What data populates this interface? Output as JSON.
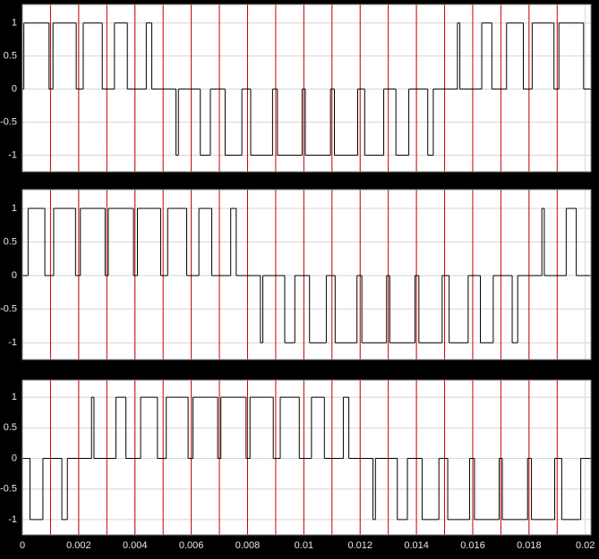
{
  "chart_data": [
    {
      "type": "step",
      "x": [
        0,
        5.2e-05,
        0.000948,
        0.001087,
        0.001913,
        0.002162,
        0.002838,
        0.003271,
        0.003729,
        0.004402,
        0.004598,
        0.005457,
        0.005543,
        0.006321,
        0.006679,
        0.007202,
        0.007798,
        0.008112,
        0.008888,
        0.009061,
        0.009939,
        0.010052,
        0.010948,
        0.011087,
        0.011913,
        0.012162,
        0.012838,
        0.013271,
        0.013729,
        0.014402,
        0.014598,
        0.015457,
        0.015543,
        0.016321,
        0.016679,
        0.017202,
        0.017798,
        0.018112,
        0.018888,
        0.019061,
        0.019939
      ],
      "values": [
        0,
        1,
        0,
        1,
        0,
        1,
        0,
        1,
        0,
        1,
        0,
        -1,
        0,
        -1,
        0,
        -1,
        0,
        -1,
        0,
        -1,
        0,
        -1,
        0,
        -1,
        0,
        -1,
        0,
        -1,
        0,
        -1,
        0,
        1,
        0,
        1,
        0,
        1,
        0,
        1,
        0,
        1,
        0
      ],
      "color": "#000000",
      "xlim": [
        0,
        0.0202
      ],
      "xticks": [
        0,
        0.002,
        0.004,
        0.006,
        0.008,
        0.01,
        0.012,
        0.014,
        0.016,
        0.018,
        0.02
      ],
      "ylim": [
        -1.25,
        1.28
      ],
      "yticks": [
        -1,
        -0.5,
        0,
        0.5,
        1
      ],
      "grid": true,
      "markers": [
        0.001,
        0.002,
        0.003,
        0.004,
        0.005,
        0.006,
        0.007,
        0.008,
        0.009,
        0.01,
        0.011,
        0.012,
        0.013,
        0.014,
        0.015,
        0.016,
        0.017,
        0.018,
        0.019
      ],
      "marker_color": "#cc0000"
    },
    {
      "type": "step",
      "x": [
        0,
        0.000202,
        0.000798,
        0.001112,
        0.001888,
        0.002061,
        0.002939,
        0.003052,
        0.003948,
        0.004087,
        0.004913,
        0.005162,
        0.005838,
        0.006271,
        0.006729,
        0.007402,
        0.007598,
        0.008457,
        0.008543,
        0.009321,
        0.009679,
        0.010202,
        0.010798,
        0.011112,
        0.011888,
        0.012061,
        0.012939,
        0.013052,
        0.013948,
        0.014087,
        0.014913,
        0.015162,
        0.015838,
        0.016271,
        0.016729,
        0.017402,
        0.017598,
        0.018457,
        0.018543,
        0.019321,
        0.019679
      ],
      "values": [
        0,
        1,
        0,
        1,
        0,
        1,
        0,
        1,
        0,
        1,
        0,
        1,
        0,
        1,
        0,
        1,
        0,
        -1,
        0,
        -1,
        0,
        -1,
        0,
        -1,
        0,
        -1,
        0,
        -1,
        0,
        -1,
        0,
        -1,
        0,
        -1,
        0,
        -1,
        0,
        1,
        0,
        1,
        0
      ],
      "color": "#000000",
      "xlim": [
        0,
        0.0202
      ],
      "xticks": [
        0,
        0.002,
        0.004,
        0.006,
        0.008,
        0.01,
        0.012,
        0.014,
        0.016,
        0.018,
        0.02
      ],
      "ylim": [
        -1.25,
        1.28
      ],
      "yticks": [
        -1,
        -0.5,
        0,
        0.5,
        1
      ],
      "grid": true,
      "markers": [
        0.001,
        0.002,
        0.003,
        0.004,
        0.005,
        0.006,
        0.007,
        0.008,
        0.009,
        0.01,
        0.011,
        0.012,
        0.013,
        0.014,
        0.015,
        0.016,
        0.017,
        0.018,
        0.019
      ],
      "marker_color": "#cc0000"
    },
    {
      "type": "step",
      "x": [
        0,
        0.000271,
        0.000729,
        0.001402,
        0.001598,
        0.002457,
        0.002543,
        0.003321,
        0.003679,
        0.004202,
        0.004798,
        0.005112,
        0.005888,
        0.006061,
        0.006939,
        0.007052,
        0.007948,
        0.008087,
        0.008913,
        0.009162,
        0.009838,
        0.010271,
        0.010729,
        0.011402,
        0.011598,
        0.012457,
        0.012543,
        0.013321,
        0.013679,
        0.014202,
        0.014798,
        0.015112,
        0.015888,
        0.016061,
        0.016939,
        0.017052,
        0.017948,
        0.018087,
        0.018913,
        0.019162,
        0.019838
      ],
      "values": [
        0,
        -1,
        0,
        -1,
        0,
        1,
        0,
        1,
        0,
        1,
        0,
        1,
        0,
        1,
        0,
        1,
        0,
        1,
        0,
        1,
        0,
        1,
        0,
        1,
        0,
        -1,
        0,
        -1,
        0,
        -1,
        0,
        -1,
        0,
        -1,
        0,
        -1,
        0,
        -1,
        0,
        -1,
        0
      ],
      "color": "#000000",
      "xlim": [
        0,
        0.0202
      ],
      "xticks": [
        0,
        0.002,
        0.004,
        0.006,
        0.008,
        0.01,
        0.012,
        0.014,
        0.016,
        0.018,
        0.02
      ],
      "ylim": [
        -1.25,
        1.28
      ],
      "yticks": [
        -1,
        -0.5,
        0,
        0.5,
        1
      ],
      "grid": true,
      "xtick_labels": true,
      "markers": [
        0.001,
        0.002,
        0.003,
        0.004,
        0.005,
        0.006,
        0.007,
        0.008,
        0.009,
        0.01,
        0.011,
        0.012,
        0.013,
        0.014,
        0.015,
        0.016,
        0.017,
        0.018,
        0.019
      ],
      "marker_color": "#cc0000"
    }
  ]
}
